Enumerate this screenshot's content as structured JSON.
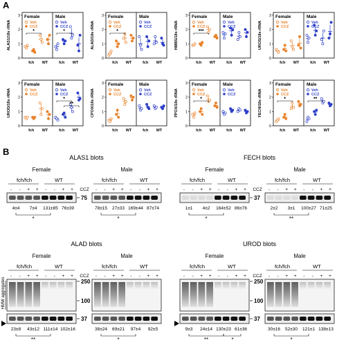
{
  "panel_a": {
    "letter": "A",
    "group_female": "Female",
    "group_male": "Male",
    "legend": {
      "veh": "Veh",
      "ccz": "CCZ"
    },
    "x_labels": [
      "fch",
      "WT"
    ],
    "colors": {
      "female": "#e8822a",
      "male": "#2d3fc8"
    },
    "charts": [
      {
        "ylabel": "ALAS1/18s rRNA",
        "ticks": [
          "0",
          "1",
          "2",
          "3"
        ],
        "ylim": [
          0,
          3
        ],
        "sig": [
          {
            "text": "*",
            "side": "female"
          },
          {
            "text": "*",
            "side": "male"
          }
        ],
        "female": {
          "fch_veh": [
            0.8,
            0.7,
            0.9
          ],
          "fch_ccz": [
            0.5,
            0.6,
            0.4
          ],
          "wt_veh": [
            1.6,
            1.3,
            1.1
          ],
          "wt_ccz": [
            1.3,
            1.0,
            1.6
          ]
        },
        "male": {
          "fch_veh": [
            0.8,
            0.6,
            1.0
          ],
          "fch_ccz": [
            1.3,
            1.0,
            1.2
          ],
          "wt_veh": [
            2.2,
            1.4,
            1.6
          ],
          "wt_ccz": [
            0.9,
            0.5,
            1.6
          ]
        }
      },
      {
        "ylabel": "ALAD/18s rRNA",
        "ticks": [
          "0",
          "1",
          "2",
          "3"
        ],
        "ylim": [
          0,
          3
        ],
        "sig": [
          {
            "text": "*",
            "side": "female"
          }
        ],
        "female": {
          "fch_veh": [
            0.2,
            0.3,
            0.5
          ],
          "fch_ccz": [
            1.2,
            0.8,
            1.0
          ],
          "wt_veh": [
            1.4,
            1.7,
            1.1
          ],
          "wt_ccz": [
            1.6,
            1.2,
            1.4
          ]
        },
        "male": {
          "fch_veh": [
            1.5,
            0.9,
            0.6
          ],
          "fch_ccz": [
            1.5,
            0.8,
            1.2
          ],
          "wt_veh": [
            1.0,
            1.5,
            1.1
          ],
          "wt_ccz": [
            1.4,
            1.0,
            0.9
          ]
        }
      },
      {
        "ylabel": "HMBS/18s rRNA",
        "ticks": [
          "0",
          "1",
          "2",
          "3"
        ],
        "ylim": [
          0,
          3
        ],
        "sig": [
          {
            "text": "***",
            "side": "female"
          }
        ],
        "female": {
          "fch_veh": [
            0.9,
            0.9,
            1.0
          ],
          "fch_ccz": [
            1.0,
            0.9,
            1.1
          ],
          "wt_veh": [
            2.2,
            1.8,
            2.0
          ],
          "wt_ccz": [
            1.5,
            1.6,
            1.4
          ]
        },
        "male": {
          "fch_veh": [
            1.8,
            1.4,
            1.7
          ],
          "fch_ccz": [
            2.1,
            1.6,
            2.0
          ],
          "wt_veh": [
            1.3,
            1.8,
            1.5
          ],
          "wt_ccz": [
            2.0,
            1.5,
            1.8
          ]
        }
      },
      {
        "ylabel": "UROS/18s rRNA",
        "ticks": [
          "0",
          "1",
          "2",
          "3"
        ],
        "ylim": [
          0,
          3
        ],
        "sig": [],
        "female": {
          "fch_veh": [
            0.6,
            0.5,
            0.4
          ],
          "fch_ccz": [
            0.6,
            0.9,
            0.5
          ],
          "wt_veh": [
            1.2,
            0.8,
            0.6
          ],
          "wt_ccz": [
            0.9,
            1.5,
            0.7
          ]
        },
        "male": {
          "fch_veh": [
            1.6,
            1.1,
            1.4
          ],
          "fch_ccz": [
            2.3,
            1.6,
            1.9
          ],
          "wt_veh": [
            1.3,
            1.0,
            1.9
          ],
          "wt_ccz": [
            1.4,
            1.7,
            2.5
          ]
        }
      },
      {
        "ylabel": "UROD/18s rRNA",
        "ticks": [
          "0",
          "1",
          "2",
          "3"
        ],
        "ylim": [
          0,
          3
        ],
        "sig": [
          {
            "text": "*",
            "side": "male"
          },
          {
            "text": "**",
            "side": "male"
          }
        ],
        "female": {
          "fch_veh": [
            0.6,
            0.5,
            0.6
          ],
          "fch_ccz": [
            0.6,
            0.5,
            0.6
          ],
          "wt_veh": [
            1.6,
            0.8,
            1.2
          ],
          "wt_ccz": [
            1.0,
            0.5,
            0.8
          ]
        },
        "male": {
          "fch_veh": [
            0.6,
            0.5,
            0.4
          ],
          "fch_ccz": [
            0.8,
            0.9,
            0.6
          ],
          "wt_veh": [
            1.5,
            1.3,
            1.0
          ],
          "wt_ccz": [
            2.3,
            1.8,
            1.9
          ]
        }
      },
      {
        "ylabel": "CPOX/18s rRNA",
        "ticks": [
          "0",
          "1",
          "2",
          "3"
        ],
        "ylim": [
          0,
          3
        ],
        "sig": [],
        "female": {
          "fch_veh": [
            0.4,
            0.3,
            0.5
          ],
          "fch_ccz": [
            0.8,
            1.1,
            0.6
          ],
          "wt_veh": [
            1.9,
            1.5,
            1.7
          ],
          "wt_ccz": [
            2.1,
            1.8,
            2.0
          ]
        },
        "male": {
          "fch_veh": [
            1.4,
            1.1,
            1.2
          ],
          "fch_ccz": [
            1.5,
            1.3,
            1.2
          ],
          "wt_veh": [
            1.4,
            1.2,
            1.3
          ],
          "wt_ccz": [
            1.3,
            1.2,
            1.4
          ]
        }
      },
      {
        "ylabel": "PPOX/18s rRNA",
        "ticks": [
          "0",
          "1",
          "2",
          "3"
        ],
        "ylim": [
          0,
          3
        ],
        "sig": [
          {
            "text": "*",
            "side": "female"
          }
        ],
        "female": {
          "fch_veh": [
            0.8,
            0.6,
            0.9
          ],
          "fch_ccz": [
            1.0,
            1.2,
            0.8
          ],
          "wt_veh": [
            2.1,
            1.7,
            1.8
          ],
          "wt_ccz": [
            1.4,
            1.6,
            1.3
          ]
        },
        "male": {
          "fch_veh": [
            1.0,
            0.8,
            0.9
          ],
          "fch_ccz": [
            1.2,
            1.0,
            1.1
          ],
          "wt_veh": [
            1.0,
            1.2,
            1.1
          ],
          "wt_ccz": [
            1.1,
            0.9,
            1.0
          ]
        }
      },
      {
        "ylabel": "FECH/18s rRNA",
        "ticks": [
          "0",
          "1",
          "2",
          "3"
        ],
        "ylim": [
          0,
          3
        ],
        "sig": [
          {
            "text": "*",
            "side": "female"
          },
          {
            "text": "**",
            "side": "male"
          }
        ],
        "female": {
          "fch_veh": [
            0.3,
            0.4,
            0.5
          ],
          "fch_ccz": [
            0.6,
            0.8,
            0.5
          ],
          "wt_veh": [
            1.2,
            1.6,
            1.3
          ],
          "wt_ccz": [
            1.7,
            1.4,
            1.5
          ]
        },
        "male": {
          "fch_veh": [
            0.3,
            0.6,
            0.5
          ],
          "fch_ccz": [
            1.0,
            0.8,
            1.1
          ],
          "wt_veh": [
            1.9,
            1.6,
            1.7
          ],
          "wt_ccz": [
            1.6,
            1.4,
            1.5
          ]
        }
      }
    ]
  },
  "panel_b": {
    "letter": "B",
    "groups": {
      "female": "Female",
      "male": "Male",
      "fch": "fch/fch",
      "wt": "WT",
      "ccz": "CCZ",
      "hmw": "HMW aggregates"
    },
    "treatment_marks": [
      "-",
      "-",
      "+",
      "+",
      "-",
      "-",
      "+",
      "+"
    ],
    "blots": [
      {
        "title": "ALAS1 blots",
        "mw": [
          "75"
        ],
        "female_quant": [
          "4±4",
          "7±4",
          "131±85",
          "76±39"
        ],
        "male_quant": [
          "78±15",
          "27±33",
          "169±44",
          "87±74"
        ],
        "female_sig": "*",
        "male_sig": "*"
      },
      {
        "title": "FECH blots",
        "mw": [
          "37"
        ],
        "female_quant": [
          "1±1",
          "4±2",
          "164±52",
          "86±76"
        ],
        "male_quant": [
          "2±2",
          "3±1",
          "100±27",
          "71±25"
        ],
        "female_sig": "*",
        "male_sig": "**"
      },
      {
        "title": "ALAD blots",
        "mw": [
          "250",
          "100",
          "37"
        ],
        "female_quant": [
          "23±8",
          "43±12",
          "111±14",
          "102±16"
        ],
        "male_quant": [
          "38±24",
          "69±21",
          "97±4",
          "92±5"
        ],
        "female_sig": "**",
        "male_sig": "*"
      },
      {
        "title": "UROD blots",
        "mw": [
          "250",
          "100",
          "37"
        ],
        "female_quant": [
          "9±3",
          "24±14",
          "130±23",
          "61±36"
        ],
        "male_quant": [
          "30±16",
          "52±30",
          "121±1",
          "138±13"
        ],
        "female_sig": "**",
        "female_sig2": "*",
        "male_sig": "*"
      }
    ]
  }
}
